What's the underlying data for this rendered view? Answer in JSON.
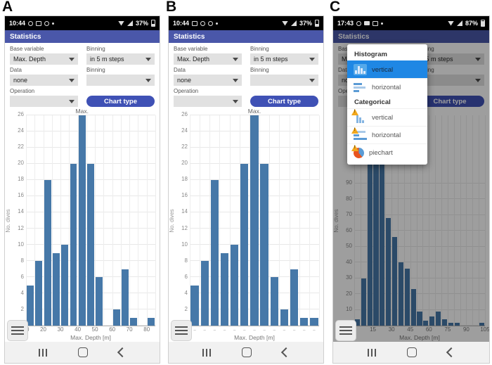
{
  "panels": [
    {
      "letter": "A",
      "status": {
        "time": "10:44",
        "battery": "37%"
      },
      "appbar": {
        "title": "Statistics"
      },
      "form": {
        "base_variable_label": "Base variable",
        "base_variable_value": "Max. Depth",
        "binning1_label": "Binning",
        "binning1_value": "in 5 m steps",
        "data_label": "Data",
        "data_value": "none",
        "binning2_label": "Binning",
        "binning2_value": "",
        "operation_label": "Operation",
        "operation_value": "",
        "chart_type_button": "Chart type"
      }
    },
    {
      "letter": "B",
      "status": {
        "time": "10:44",
        "battery": "37%"
      },
      "appbar": {
        "title": "Statistics"
      },
      "form": {
        "base_variable_label": "Base variable",
        "base_variable_value": "Max. Depth",
        "binning1_label": "Binning",
        "binning1_value": "in 5 m steps",
        "data_label": "Data",
        "data_value": "none",
        "binning2_label": "Binning",
        "binning2_value": "",
        "operation_label": "Operation",
        "operation_value": "",
        "chart_type_button": "Chart type"
      }
    },
    {
      "letter": "C",
      "status": {
        "time": "17:43",
        "battery": "87%"
      },
      "appbar": {
        "title": "Statistics"
      },
      "form": {
        "base_variable_label": "Base variable",
        "base_variable_value": "Max. Depth",
        "binning1_label": "Binning",
        "binning1_value": "in 5 m steps",
        "data_label": "Data",
        "data_value": "none",
        "binning2_label": "Binning",
        "binning2_value": "",
        "operation_label": "Operation",
        "operation_value": "",
        "chart_type_button": "Chart type"
      }
    }
  ],
  "popup": {
    "sections": [
      {
        "title": "Histogram",
        "items": [
          {
            "label": "vertical",
            "selected": true
          },
          {
            "label": "horizontal",
            "selected": false
          }
        ]
      },
      {
        "title": "Categorical",
        "items": [
          {
            "label": "vertical",
            "selected": false
          },
          {
            "label": "horizontal",
            "selected": false
          },
          {
            "label": "piechart",
            "selected": false
          }
        ]
      }
    ]
  },
  "chart_data": [
    {
      "type": "bar",
      "panel": "A",
      "ylabel": "No. dives",
      "xlabel": "Max. Depth [m]",
      "bin_start_m": 10,
      "bin_width_m": 5,
      "values": [
        5,
        8,
        18,
        9,
        10,
        20,
        26,
        20,
        6,
        0,
        2,
        7,
        1,
        0,
        1
      ],
      "yticks": [
        0,
        2,
        4,
        6,
        8,
        10,
        12,
        14,
        16,
        18,
        20,
        22,
        24,
        26
      ],
      "xticks": [
        10,
        20,
        30,
        40,
        50,
        60,
        70,
        80
      ],
      "ylim": [
        0,
        26
      ],
      "grid": true,
      "annotation": {
        "text": "Max.",
        "bar_index": 6
      }
    },
    {
      "type": "bar",
      "panel": "B",
      "ylabel": "No. dives",
      "xlabel": "Max. Depth [m]",
      "bin_start_m": 10,
      "bin_width_m": 5,
      "values": [
        5,
        8,
        18,
        9,
        10,
        20,
        26,
        20,
        6,
        2,
        7,
        1,
        1
      ],
      "yticks": [
        0,
        2,
        4,
        6,
        8,
        10,
        12,
        14,
        16,
        18,
        20,
        22,
        24,
        26
      ],
      "xticks": [],
      "xtick_style": "dashes",
      "dash_char": "–",
      "ylim": [
        0,
        26
      ],
      "grid": true,
      "annotation": {
        "text": "Max.",
        "bar_index": 6
      }
    },
    {
      "type": "bar",
      "panel": "C",
      "ylabel": "No. dives",
      "xlabel": "Max. Depth [m]",
      "bin_start_m": 0,
      "bin_width_m": 5,
      "values": [
        4,
        30,
        105,
        108,
        104,
        68,
        56,
        40,
        36,
        23,
        9,
        3,
        6,
        9,
        4,
        2,
        2,
        0,
        0,
        0,
        2
      ],
      "yticks": [
        0,
        10,
        20,
        30,
        40,
        50,
        60,
        70,
        80,
        90
      ],
      "xticks": [
        0,
        15,
        30,
        45,
        60,
        75,
        90,
        105
      ],
      "ylim": [
        0,
        133
      ],
      "grid": true
    }
  ],
  "colors": {
    "bar_blue": "#4678a8",
    "titlebar_blue": "#4a57a9",
    "button_indigo": "#3f51b5",
    "select_bg": "#e1e1e1",
    "popup_selected_blue": "#1f87e4",
    "popup_icon_blue": "#5b9bd5",
    "warn_orange": "#f2a71b",
    "pie_orange_red": "#e8541e",
    "nav_bg": "#f1f1f1",
    "scrim": "rgba(0,0,0,0.38)"
  }
}
